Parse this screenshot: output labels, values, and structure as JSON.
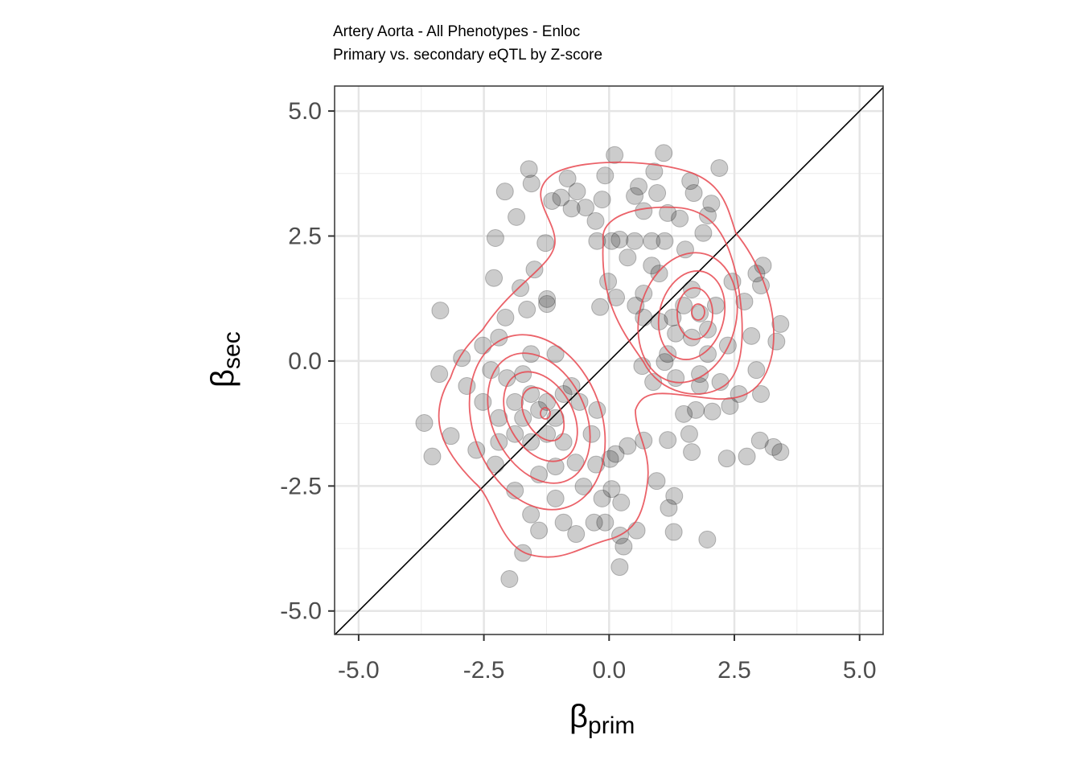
{
  "chart_data": {
    "type": "scatter",
    "title": "Artery Aorta - All Phenotypes - Enloc",
    "subtitle": "Primary vs. secondary eQTL by Z-score",
    "x_label": "β",
    "x_label_subscript": "prim",
    "y_label": "β",
    "y_label_subscript": "sec",
    "xlim": [
      -5.48,
      5.47
    ],
    "ylim": [
      -5.47,
      5.5
    ],
    "xticks": [
      {
        "value": -5,
        "label": "-5.0"
      },
      {
        "value": -2.5,
        "label": "-2.5"
      },
      {
        "value": 0,
        "label": "0.0"
      },
      {
        "value": 2.5,
        "label": "2.5"
      },
      {
        "value": 5,
        "label": "5.0"
      }
    ],
    "yticks": [
      {
        "value": -5,
        "label": "-5.0"
      },
      {
        "value": -2.5,
        "label": "-2.5"
      },
      {
        "value": 0,
        "label": "0.0"
      },
      {
        "value": 2.5,
        "label": "2.5"
      },
      {
        "value": 5,
        "label": "5.0"
      }
    ],
    "xminor": [
      -3.75,
      -1.25,
      1.25,
      3.75
    ],
    "yminor": [
      -3.75,
      -1.25,
      1.25,
      3.75
    ],
    "grid": true,
    "identity_line": true,
    "density_contours": true,
    "color": "#000000",
    "contour_color": "#e8474f",
    "x": [
      -1.6,
      -1.55,
      -2.08,
      -1.85,
      -2.27,
      -0.83,
      -0.64,
      -0.96,
      -0.75,
      -0.47,
      -0.14,
      -0.27,
      -0.08,
      0.11,
      1.09,
      0.9,
      0.59,
      0.51,
      0.96,
      0.69,
      1.17,
      1.41,
      1.62,
      1.69,
      2.2,
      2.04,
      1.97,
      1.88,
      0.05,
      0.21,
      -0.24,
      0.51,
      0.85,
      1.11,
      1.52,
      0.37,
      0.85,
      1.0,
      -0.02,
      0.14,
      -0.18,
      0.53,
      0.69,
      0.69,
      1.0,
      1.27,
      1.49,
      1.65,
      1.81,
      1.97,
      1.33,
      1.65,
      2.13,
      2.46,
      2.7,
      2.94,
      3.07,
      3.03,
      2.84,
      3.42,
      3.34,
      2.37,
      1.97,
      1.17,
      1.11,
      0.66,
      0.88,
      1.33,
      1.81,
      2.22,
      2.94,
      2.59,
      3.03,
      2.41,
      2.06,
      1.73,
      1.49,
      1.81,
      1.6,
      1.65,
      1.17,
      3.01,
      3.28,
      3.42,
      2.75,
      2.35,
      0.95,
      1.3,
      1.19,
      1.29,
      1.96,
      0.69,
      0.37,
      0.13,
      0.02,
      -0.26,
      0.05,
      -0.14,
      0.24,
      -0.08,
      0.22,
      0.55,
      0.29,
      0.21,
      -0.3,
      -0.66,
      -0.91,
      -1.07,
      -0.51,
      -1.56,
      -1.4,
      -1.72,
      -1.99,
      -1.88,
      -2.27,
      -2.65,
      -3.16,
      -3.69,
      -3.53,
      -3.39,
      -2.94,
      -2.52,
      -2.2,
      -2.07,
      -1.77,
      -1.64,
      -1.24,
      -1.24,
      -1.49,
      -1.27,
      -2.3,
      -3.37,
      -2.36,
      -2.04,
      -1.72,
      -1.56,
      -1.07,
      -1.88,
      -1.56,
      -1.4,
      -1.24,
      -1.07,
      -0.91,
      -0.75,
      -0.59,
      -1.72,
      -1.88,
      -1.56,
      -1.24,
      -0.91,
      -0.67,
      -1.07,
      -1.4,
      -2.2,
      -2.52,
      -2.84,
      -2.2,
      -0.35,
      -0.24,
      -1.14
    ],
    "y": [
      3.84,
      3.55,
      3.39,
      2.88,
      2.46,
      3.65,
      3.39,
      3.27,
      3.05,
      3.07,
      3.23,
      2.8,
      3.71,
      4.12,
      4.16,
      3.79,
      3.49,
      3.3,
      3.36,
      3.0,
      2.96,
      2.85,
      3.6,
      3.36,
      3.86,
      3.15,
      2.91,
      2.56,
      2.4,
      2.43,
      2.4,
      2.4,
      2.4,
      2.4,
      2.23,
      2.07,
      1.91,
      1.75,
      1.59,
      1.27,
      1.08,
      1.11,
      1.35,
      0.87,
      0.79,
      0.87,
      1.11,
      1.43,
      0.95,
      0.63,
      0.55,
      0.47,
      1.11,
      1.59,
      1.19,
      1.75,
      1.91,
      1.51,
      0.5,
      0.74,
      0.39,
      0.31,
      0.14,
      0.14,
      -0.02,
      -0.1,
      -0.42,
      -0.34,
      -0.26,
      -0.42,
      -0.18,
      -0.66,
      -0.66,
      -0.9,
      -1.01,
      -0.98,
      -1.06,
      -0.5,
      -1.46,
      -1.82,
      -1.58,
      -1.59,
      -1.72,
      -1.82,
      -1.91,
      -1.95,
      -2.4,
      -2.7,
      -2.94,
      -3.42,
      -3.57,
      -1.59,
      -1.7,
      -1.86,
      -1.96,
      -2.07,
      -2.56,
      -2.75,
      -2.83,
      -3.23,
      -3.49,
      -3.39,
      -3.71,
      -4.12,
      -3.23,
      -3.46,
      -3.23,
      -2.75,
      -2.51,
      -3.07,
      -3.39,
      -3.84,
      -4.36,
      -2.59,
      -2.07,
      -1.78,
      -1.5,
      -1.24,
      -1.91,
      -0.26,
      0.06,
      0.31,
      0.47,
      0.87,
      1.46,
      1.03,
      1.14,
      1.24,
      1.83,
      2.36,
      1.66,
      1.01,
      -0.18,
      -0.34,
      -0.26,
      0.14,
      0.14,
      -0.82,
      -0.66,
      -0.98,
      -0.82,
      -1.14,
      -0.66,
      -0.5,
      -0.82,
      -1.14,
      -1.46,
      -1.62,
      -1.46,
      -1.62,
      -2.03,
      -2.11,
      -2.27,
      -1.14,
      -0.82,
      -0.5,
      -1.62,
      -1.46,
      -0.98,
      3.2
    ]
  }
}
